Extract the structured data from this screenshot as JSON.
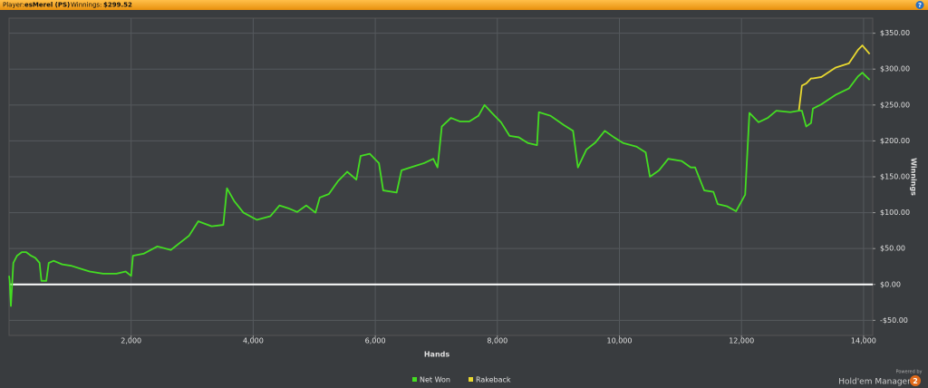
{
  "header": {
    "player_label": "Player:",
    "player": "esMerel (PS)",
    "winnings_label": "Winnings:",
    "winnings": "$299.52",
    "help_icon": "?"
  },
  "footer": {
    "powered_by": "Powered by",
    "brand": "Hold'em Manager",
    "brand_badge": "2"
  },
  "chart_data": {
    "type": "line",
    "xlabel": "Hands",
    "ylabel": "Winnings",
    "grid": true,
    "legend": "bottom",
    "xlim": [
      0,
      14150
    ],
    "ylim": [
      -71,
      371
    ],
    "xticks": [
      {
        "value": 2000,
        "label": "2,000"
      },
      {
        "value": 4000,
        "label": "4,000"
      },
      {
        "value": 6000,
        "label": "6,000"
      },
      {
        "value": 8000,
        "label": "8,000"
      },
      {
        "value": 10000,
        "label": "10,000"
      },
      {
        "value": 12000,
        "label": "12,000"
      },
      {
        "value": 14000,
        "label": "14,000"
      }
    ],
    "yticks": [
      {
        "value": -50,
        "label": "-$50.00"
      },
      {
        "value": 0,
        "label": "$0.00"
      },
      {
        "value": 50,
        "label": "$50.00"
      },
      {
        "value": 100,
        "label": "$100.00"
      },
      {
        "value": 150,
        "label": "$150.00"
      },
      {
        "value": 200,
        "label": "$200.00"
      },
      {
        "value": 250,
        "label": "$250.00"
      },
      {
        "value": 300,
        "label": "$300.00"
      },
      {
        "value": 350,
        "label": "$350.00"
      }
    ],
    "x": [
      0,
      10,
      30,
      70,
      130,
      210,
      280,
      360,
      430,
      500,
      530,
      610,
      650,
      730,
      870,
      1020,
      1170,
      1320,
      1540,
      1760,
      1910,
      2000,
      2030,
      2210,
      2430,
      2650,
      2800,
      2950,
      3100,
      3320,
      3510,
      3570,
      3690,
      3840,
      4060,
      4280,
      4430,
      4580,
      4720,
      4870,
      5020,
      5090,
      5240,
      5390,
      5540,
      5690,
      5760,
      5910,
      6060,
      6130,
      6350,
      6430,
      6650,
      6800,
      6950,
      7020,
      7090,
      7240,
      7390,
      7540,
      7690,
      7790,
      7910,
      8060,
      8200,
      8350,
      8500,
      8650,
      8680,
      8870,
      9090,
      9240,
      9320,
      9460,
      9610,
      9760,
      9910,
      10060,
      10280,
      10430,
      10500,
      10650,
      10800,
      11020,
      11170,
      11240,
      11390,
      11540,
      11610,
      11760,
      11910,
      12060,
      12130,
      12280,
      12430,
      12570,
      12800,
      12940,
      12990,
      13060,
      13140,
      13170,
      13310,
      13540,
      13760,
      13910,
      13980,
      14100
    ],
    "series": [
      {
        "name": "Net Won",
        "color": "#44dd22",
        "values": [
          12,
          5,
          -30,
          30,
          40,
          45,
          45,
          40,
          37,
          30,
          5,
          5,
          30,
          33,
          28,
          26,
          22,
          18,
          15,
          15,
          18,
          12,
          40,
          43,
          53,
          48,
          58,
          68,
          88,
          81,
          83,
          134,
          116,
          100,
          90,
          95,
          110,
          106,
          101,
          110,
          100,
          121,
          126,
          144,
          157,
          146,
          179,
          182,
          169,
          131,
          128,
          159,
          165,
          169,
          175,
          163,
          220,
          232,
          227,
          227,
          235,
          250,
          239,
          226,
          207,
          205,
          197,
          194,
          240,
          235,
          222,
          214,
          163,
          188,
          198,
          214,
          205,
          197,
          192,
          184,
          150,
          159,
          175,
          172,
          163,
          163,
          131,
          129,
          112,
          109,
          102,
          125,
          239,
          226,
          232,
          242,
          240,
          242,
          242,
          220,
          225,
          245,
          251,
          264,
          273,
          290,
          295,
          285
        ]
      },
      {
        "name": "Rakeback",
        "color": "#e8d830",
        "values": [
          null,
          null,
          null,
          null,
          null,
          null,
          null,
          null,
          null,
          null,
          null,
          null,
          null,
          null,
          null,
          null,
          null,
          null,
          null,
          null,
          null,
          null,
          null,
          null,
          null,
          null,
          null,
          null,
          null,
          null,
          null,
          null,
          null,
          null,
          null,
          null,
          null,
          null,
          null,
          null,
          null,
          null,
          null,
          null,
          null,
          null,
          null,
          null,
          null,
          null,
          null,
          null,
          null,
          null,
          null,
          null,
          null,
          null,
          null,
          null,
          null,
          null,
          null,
          null,
          null,
          null,
          null,
          null,
          null,
          null,
          null,
          null,
          null,
          null,
          null,
          null,
          null,
          null,
          null,
          null,
          null,
          null,
          null,
          null,
          null,
          null,
          null,
          null,
          null,
          null,
          null,
          null,
          null,
          null,
          null,
          null,
          null,
          242,
          277,
          280,
          287,
          287,
          289,
          302,
          308,
          327,
          333,
          321
        ]
      }
    ]
  }
}
